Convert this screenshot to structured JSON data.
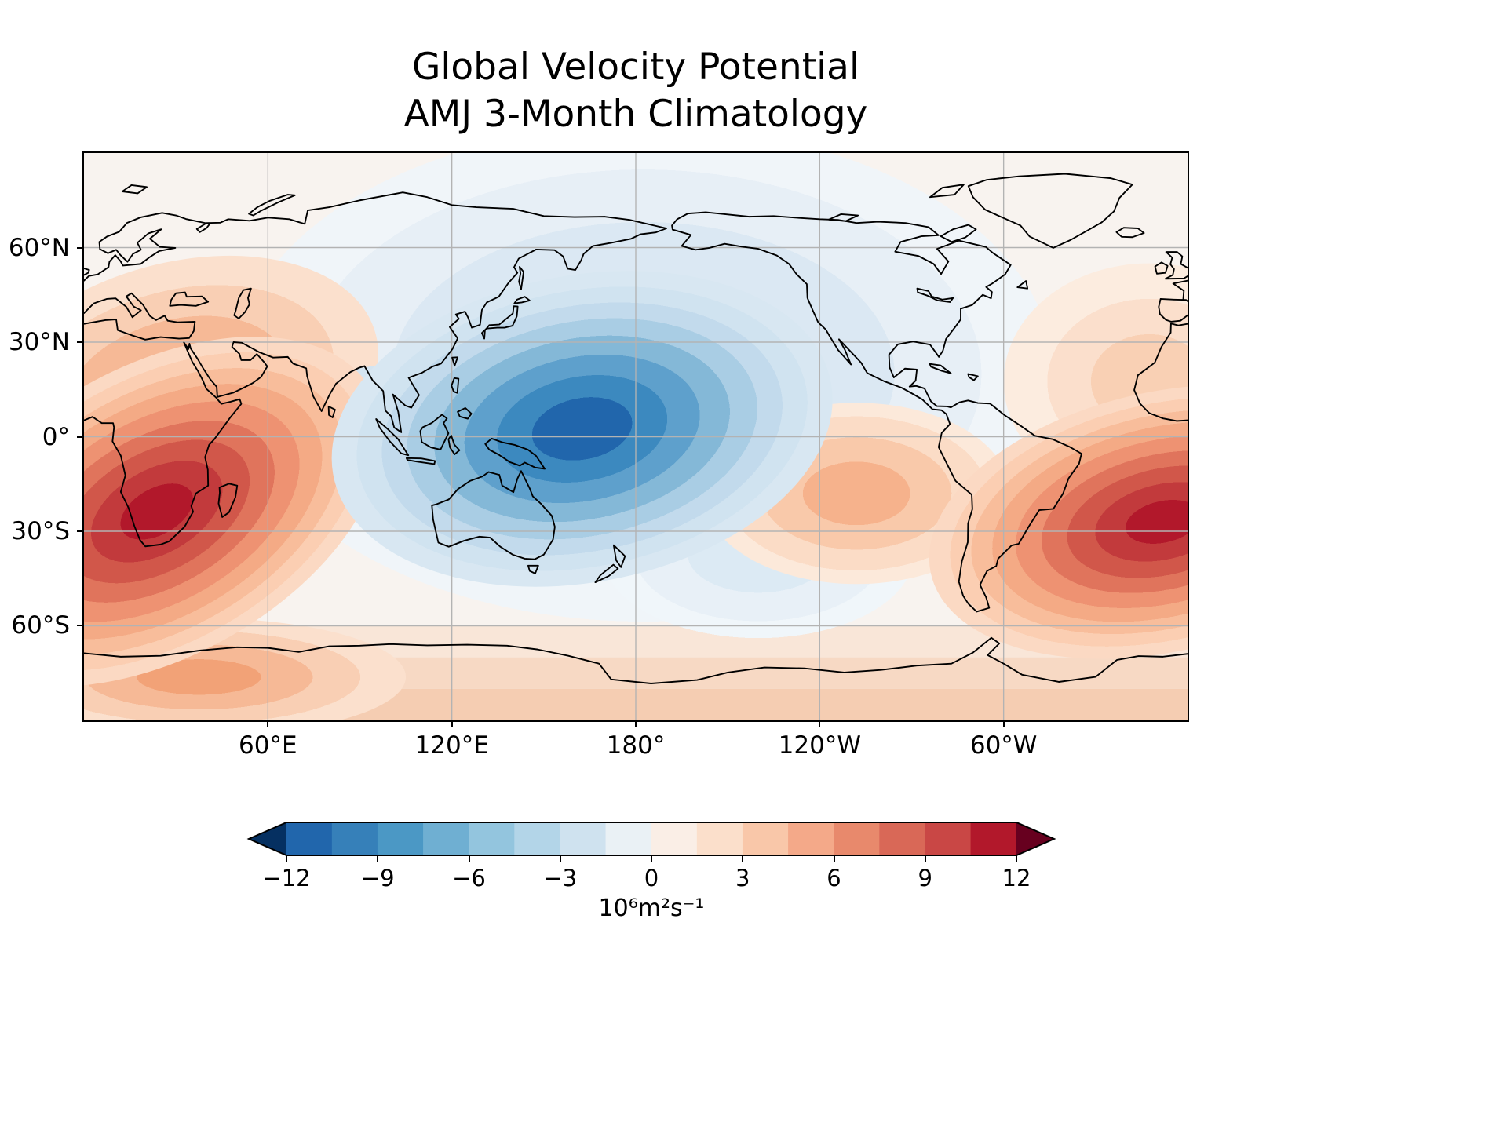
{
  "figure": {
    "title_line1": "Global Velocity Potential",
    "title_line2": "AMJ 3-Month Climatology"
  },
  "map": {
    "x_ticks": [
      {
        "lon": 60,
        "label": "60°E"
      },
      {
        "lon": 120,
        "label": "120°E"
      },
      {
        "lon": 180,
        "label": "180°"
      },
      {
        "lon": 240,
        "label": "120°W"
      },
      {
        "lon": 300,
        "label": "60°W"
      }
    ],
    "y_ticks": [
      {
        "lat": 60,
        "label": "60°N"
      },
      {
        "lat": 30,
        "label": "30°N"
      },
      {
        "lat": 0,
        "label": "0°"
      },
      {
        "lat": -30,
        "label": "30°S"
      },
      {
        "lat": -60,
        "label": "60°S"
      }
    ],
    "grid_lons": [
      60,
      120,
      180,
      240,
      300
    ],
    "grid_lats": [
      60,
      30,
      0,
      -30,
      -60
    ],
    "grid_color": "#b3b3b3"
  },
  "colorbar": {
    "vmin": -12,
    "vmax": 12,
    "ticks": [
      {
        "value": -12,
        "label": "−12"
      },
      {
        "value": -9,
        "label": "−9"
      },
      {
        "value": -6,
        "label": "−6"
      },
      {
        "value": -3,
        "label": "−3"
      },
      {
        "value": 0,
        "label": "0"
      },
      {
        "value": 3,
        "label": "3"
      },
      {
        "value": 6,
        "label": "6"
      },
      {
        "value": 9,
        "label": "9"
      },
      {
        "value": 12,
        "label": "12"
      }
    ],
    "unit_label": "10⁶m²s⁻¹",
    "band_colors": [
      "#2166ac",
      "#3680b9",
      "#4b98c5",
      "#6fafd2",
      "#93c5de",
      "#b3d5e8",
      "#cfe2ef",
      "#eaf1f5",
      "#faeee6",
      "#fbdfcb",
      "#f9c7a9",
      "#f4a989",
      "#e8896c",
      "#d96857",
      "#c94745",
      "#b2182b"
    ],
    "under_color": "#053061",
    "over_color": "#67001f"
  },
  "chart_data": {
    "type": "heatmap",
    "title": "Global Velocity Potential AMJ 3-Month Climatology",
    "variable": "velocity potential",
    "units": "10⁶ m² s⁻¹",
    "projection": "equirectangular, Pacific-centered, longitudes 0°E–360°E",
    "colormap": "RdBu_r (blue negative, red positive)",
    "levels": [
      -12,
      -10.5,
      -9,
      -7.5,
      -6,
      -4.5,
      -3,
      -1.5,
      0,
      1.5,
      3,
      4.5,
      6,
      7.5,
      9,
      10.5,
      12
    ],
    "colorbar_ticks": [
      -12,
      -9,
      -6,
      -3,
      0,
      3,
      6,
      9,
      12
    ],
    "grid_on": true,
    "lon_grid": [
      0,
      30,
      60,
      90,
      120,
      150,
      180,
      210,
      240,
      270,
      300,
      330,
      360
    ],
    "lat_grid": [
      90,
      60,
      30,
      0,
      -30,
      -60,
      -90
    ],
    "values": [
      [
        -0.5,
        -0.5,
        -1,
        -1.5,
        -2,
        -2,
        -2,
        -1.5,
        -1,
        -0.5,
        -0.5,
        0,
        -0.5
      ],
      [
        0.5,
        0,
        -1,
        -2.5,
        -3.5,
        -4.5,
        -4,
        -2.5,
        -1.5,
        -1,
        -0.5,
        0.5,
        0.5
      ],
      [
        3,
        3.5,
        0.5,
        -3,
        -5,
        -7,
        -6.5,
        -4,
        -2,
        -0.5,
        0.5,
        2,
        3
      ],
      [
        5,
        4,
        -1,
        -4,
        -7,
        -11,
        -10,
        -5,
        -1.5,
        0.5,
        1,
        3,
        5
      ],
      [
        9,
        10,
        4,
        0.5,
        -1,
        -3.5,
        -4,
        -3,
        1.5,
        2.5,
        3,
        7,
        9
      ],
      [
        4,
        4.5,
        2.5,
        1.5,
        0.5,
        -0.5,
        -1,
        -1,
        0.5,
        1,
        1.5,
        2.5,
        4
      ],
      [
        3,
        3,
        2.5,
        2,
        1.5,
        1,
        1,
        1,
        1,
        1.5,
        1.5,
        2,
        3
      ]
    ],
    "minimum": {
      "value": -12.5,
      "lon": 165,
      "lat": 3,
      "region": "western equatorial Pacific (divergence center)"
    },
    "maxima": [
      {
        "value": 12.5,
        "lon": 25,
        "lat": -22,
        "region": "southern Africa / South Atlantic"
      },
      {
        "value": 10,
        "lon": 355,
        "lat": -26,
        "region": "South Atlantic east of South America"
      }
    ]
  }
}
